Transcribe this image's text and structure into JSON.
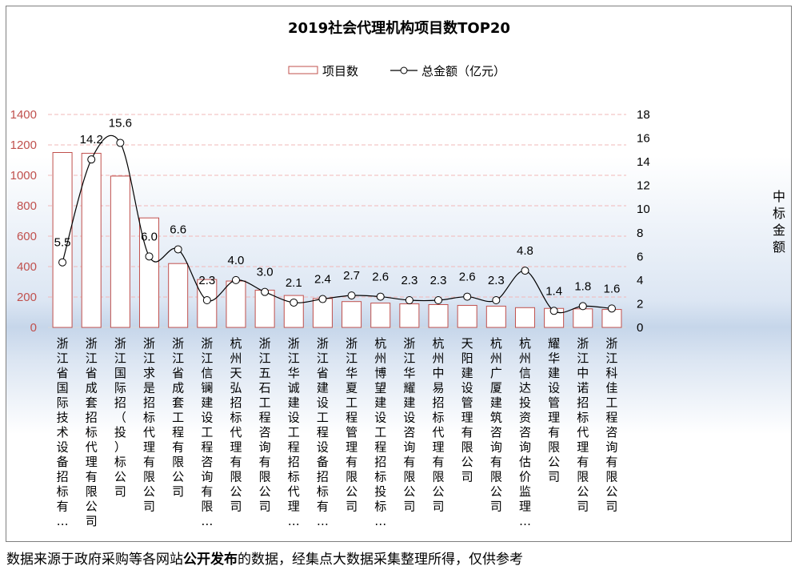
{
  "chart_data": {
    "type": "bar+line",
    "title": "2019社会代理机构项目数TOP20",
    "categories": [
      "浙江省国际技术设备招标有…",
      "浙江省成套招标代理有限公司",
      "浙江国际招（投）标公司",
      "浙江求是招标代理有限公司",
      "浙江省成套工程有限公司",
      "浙江信镧建设工程咨询有限…",
      "杭州天弘招标代理有限公司",
      "浙江五石工程咨询有限公司",
      "浙江华诚建设工程招标代理…",
      "浙江省建设工程设备招标有…",
      "浙江华夏工程管理有限公司",
      "杭州博望建设工程招标投标…",
      "浙江华耀建设咨询有限公司",
      "杭州中易招标代理有限公司",
      "天阳建设管理有限公司",
      "杭州广厦建筑咨询有限公司",
      "杭州信达投资咨询估价监理…",
      "耀华建设管理有限公司",
      "浙江中诺招标代理有限公司",
      "浙江科佳工程咨询有限公司"
    ],
    "series": [
      {
        "name": "项目数",
        "kind": "bar",
        "axis": "left",
        "values": [
          1150,
          1145,
          995,
          720,
          420,
          315,
          305,
          245,
          210,
          190,
          170,
          160,
          155,
          150,
          145,
          140,
          130,
          125,
          122,
          118
        ]
      },
      {
        "name": "总金额（亿元）",
        "kind": "line",
        "axis": "right",
        "values": [
          5.5,
          14.2,
          15.6,
          6.0,
          6.6,
          2.3,
          4.0,
          3.0,
          2.1,
          2.4,
          2.7,
          2.6,
          2.3,
          2.3,
          2.6,
          2.3,
          4.8,
          1.4,
          1.8,
          1.6
        ],
        "labels": [
          "5.5",
          "14.2",
          "15.6",
          "6.0",
          "6.6",
          "2.3",
          "4.0",
          "3.0",
          "2.1",
          "2.4",
          "2.7",
          "2.6",
          "2.3",
          "2.3",
          "2.6",
          "2.3",
          "4.8",
          "1.4",
          "1.8",
          "1.6"
        ]
      }
    ],
    "y_left": {
      "min": 0,
      "max": 1400,
      "step": 200,
      "ticks": [
        "0",
        "200",
        "400",
        "600",
        "800",
        "1000",
        "1200",
        "1400"
      ]
    },
    "y_right": {
      "min": 0,
      "max": 18,
      "step": 2,
      "ticks": [
        "0",
        "2",
        "4",
        "6",
        "8",
        "10",
        "12",
        "14",
        "16",
        "18"
      ],
      "title": "中标金额"
    },
    "legend": {
      "position": "top",
      "items": [
        "项目数",
        "总金额（亿元）"
      ]
    },
    "colors": {
      "bar_border": "#c0504d",
      "bar_fill": "#ffffff",
      "line": "#000000",
      "left_axis_text": "#c0504d",
      "right_axis_text": "#000000",
      "gridline": "#f2b8b8"
    }
  },
  "footnote": {
    "part1": "数据来源于政府采购等各网站",
    "bold": "公开发布",
    "part2": "的数据，经集点大数据采集整理所得，仅供参考"
  }
}
